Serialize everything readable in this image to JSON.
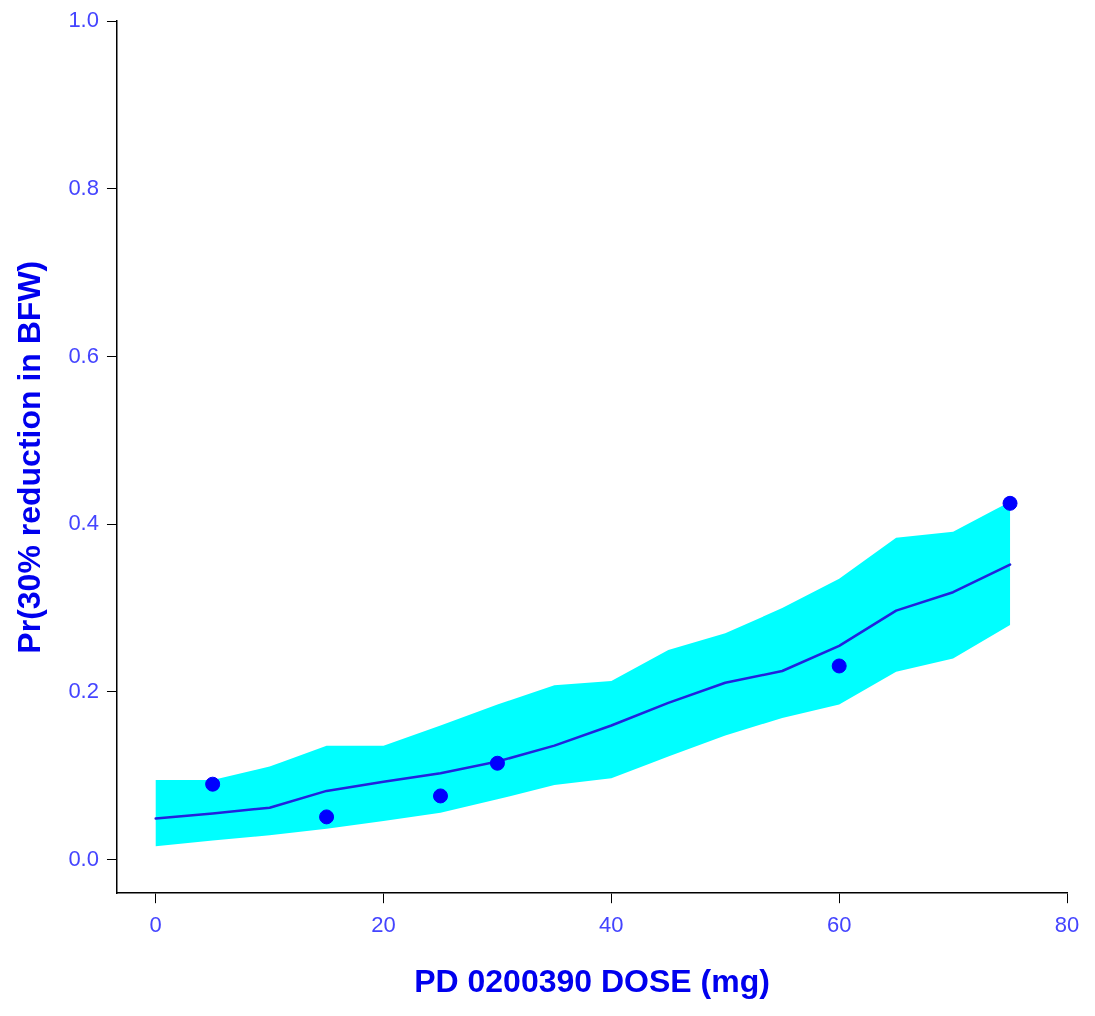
{
  "chart_data": {
    "type": "line",
    "xlabel": "PD 0200390 DOSE (mg)",
    "ylabel": "Pr(30% reduction in BFW)",
    "xlim": [
      -3.4,
      80
    ],
    "ylim": [
      -0.04,
      1
    ],
    "xticks": [
      0,
      20,
      40,
      60,
      80
    ],
    "yticks": [
      {
        "value": 0,
        "label": "0.0"
      },
      {
        "value": 0.2,
        "label": "0.2"
      },
      {
        "value": 0.4,
        "label": "0.4"
      },
      {
        "value": 0.6,
        "label": "0.6"
      },
      {
        "value": 0.8,
        "label": "0.8"
      },
      {
        "value": 1,
        "label": "1.0"
      }
    ],
    "grid": false,
    "legend": false,
    "series": [
      {
        "type": "line",
        "color": "#2222dd",
        "marker": "none",
        "x": [
          0,
          5,
          10,
          15,
          20,
          25,
          30,
          35,
          40,
          45,
          50,
          55,
          60,
          65,
          70,
          75
        ],
        "values": [
          0.049,
          0.055,
          0.062,
          0.082,
          0.093,
          0.103,
          0.117,
          0.136,
          0.16,
          0.187,
          0.211,
          0.225,
          0.255,
          0.297,
          0.319,
          0.352
        ],
        "lower": [
          0.016,
          0.023,
          0.029,
          0.037,
          0.046,
          0.056,
          0.072,
          0.089,
          0.097,
          0.123,
          0.148,
          0.169,
          0.185,
          0.224,
          0.24,
          0.28
        ],
        "upper": [
          0.095,
          0.095,
          0.111,
          0.136,
          0.136,
          0.16,
          0.185,
          0.208,
          0.213,
          0.25,
          0.27,
          0.3,
          0.335,
          0.384,
          0.391,
          0.427
        ]
      },
      {
        "type": "scatter",
        "color": "#0000ff",
        "marker": "circle",
        "x": [
          5,
          15,
          25,
          30,
          60,
          75
        ],
        "values": [
          0.09,
          0.051,
          0.076,
          0.115,
          0.231,
          0.425
        ]
      }
    ]
  }
}
